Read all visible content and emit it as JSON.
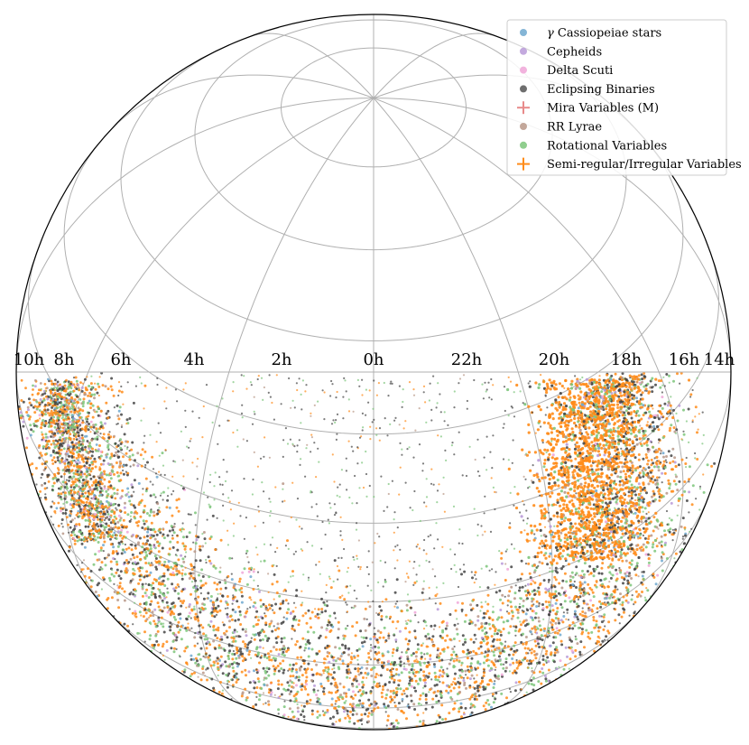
{
  "chart_data": {
    "type": "scatter",
    "title": "",
    "projection": "orthographic all-sky (equatorial), south-ward view",
    "x_ticks": [
      "10h",
      "8h",
      "6h",
      "4h",
      "2h",
      "0h",
      "22h",
      "20h",
      "18h",
      "16h",
      "14h"
    ],
    "grid": true,
    "legend_position": "top-right",
    "series": [
      {
        "name": "γ Cassiopeiae stars",
        "marker": "circle",
        "color": "#6fa8cf"
      },
      {
        "name": "Cepheids",
        "marker": "circle",
        "color": "#b99ad8"
      },
      {
        "name": "Delta Scuti",
        "marker": "circle",
        "color": "#f0a6d8"
      },
      {
        "name": "Eclipsing Binaries",
        "marker": "circle",
        "color": "#555555"
      },
      {
        "name": "Mira Variables (M)",
        "marker": "plus",
        "color": "#e88a8a"
      },
      {
        "name": "RR Lyrae",
        "marker": "circle",
        "color": "#b99888"
      },
      {
        "name": "Rotational Variables",
        "marker": "circle",
        "color": "#7cc57a"
      },
      {
        "name": "Semi-regular/Irregular Variables",
        "marker": "plus",
        "color": "#ff8c1a"
      }
    ],
    "legend_labels": {
      "gamma_symbol": "γ",
      "gamma_rest": "Cassiopeiae stars"
    }
  }
}
